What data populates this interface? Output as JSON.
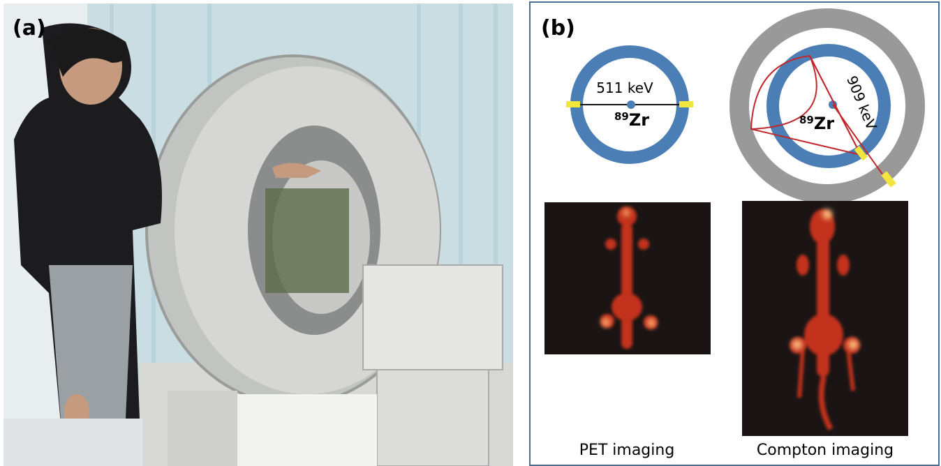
{
  "panel_a": {
    "label": "(a)"
  },
  "panel_b": {
    "label": "(b)",
    "pet_diagram": {
      "energy": "511 keV",
      "isotope_mass": "89",
      "isotope_symbol": "Zr"
    },
    "compton_diagram": {
      "energy": "909 keV",
      "isotope_mass": "89",
      "isotope_symbol": "Zr"
    },
    "pet_caption": "PET imaging",
    "compton_caption": "Compton imaging"
  }
}
